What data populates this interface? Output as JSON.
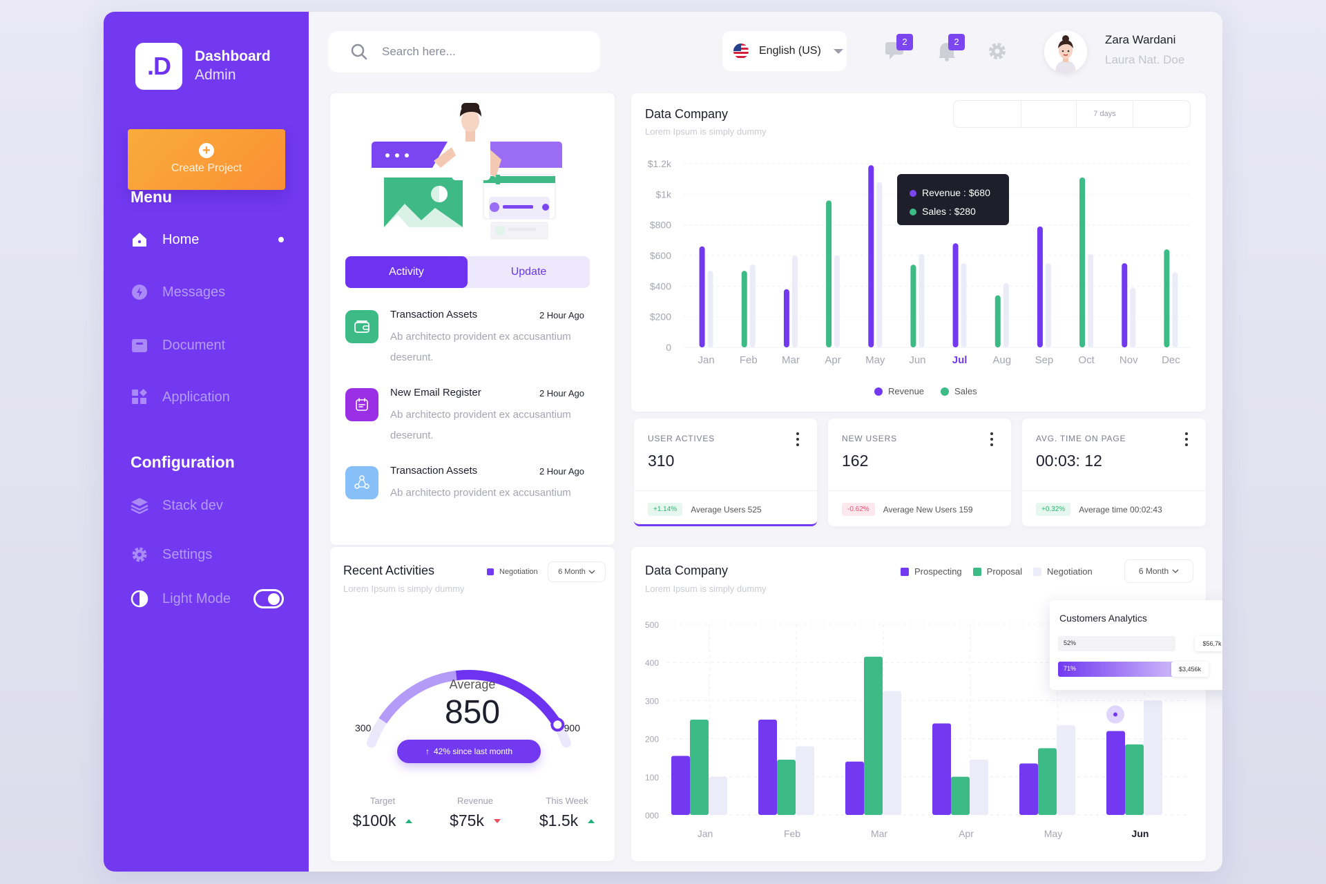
{
  "brand": {
    "logo": ".D",
    "title": "Dashboard",
    "subtitle": "Admin"
  },
  "create_label": "Create Project",
  "menu_title": "Menu",
  "menu": [
    {
      "label": "Home",
      "icon": "home-icon"
    },
    {
      "label": "Messages",
      "icon": "lightning-icon"
    },
    {
      "label": "Document",
      "icon": "folder-icon"
    },
    {
      "label": "Application",
      "icon": "apps-icon"
    }
  ],
  "config_title": "Configuration",
  "config": [
    {
      "label": "Stack dev",
      "icon": "layers-icon"
    },
    {
      "label": "Settings",
      "icon": "gear-icon"
    },
    {
      "label": "Light Mode",
      "icon": "contrast-icon"
    }
  ],
  "search": {
    "placeholder": "Search here..."
  },
  "language": "English (US)",
  "messages_badge": "2",
  "notifications_badge": "2",
  "user": {
    "name": "Zara Wardani",
    "role": "Laura Nat. Doe"
  },
  "activity_tabs": [
    "Activity",
    "Update"
  ],
  "activities": [
    {
      "title": "Transaction Assets",
      "time": "2 Hour Ago",
      "desc": "Ab architecto provident ex accusantium deserunt."
    },
    {
      "title": "New Email Register",
      "time": "2 Hour Ago",
      "desc": "Ab architecto provident ex accusantium deserunt."
    },
    {
      "title": "Transaction Assets",
      "time": "2 Hour Ago",
      "desc": "Ab architecto provident ex accusantium"
    }
  ],
  "recent": {
    "title": "Recent Activities",
    "subtitle": "Lorem Ipsum is simply dummy",
    "legend": "Negotiation",
    "period": "6 Month",
    "gauge_label": "Average",
    "gauge_value": "850",
    "gauge_min": "300",
    "gauge_max": "900",
    "gauge_fraction": 0.92,
    "since": "42% since last month",
    "kpis": [
      {
        "label": "Target",
        "value": "$100k",
        "trend": "up"
      },
      {
        "label": "Revenue",
        "value": "$75k",
        "trend": "down"
      },
      {
        "label": "This Week",
        "value": "$1.5k",
        "trend": "up"
      }
    ]
  },
  "company": {
    "title": "Data Company",
    "subtitle": "Lorem Ipsum is simply dummy",
    "range_label": "7 days",
    "tooltip_revenue": "Revenue : $680",
    "tooltip_sales": "Sales : $280",
    "legend_revenue": "Revenue",
    "legend_sales": "Sales"
  },
  "stats": [
    {
      "title": "USER ACTIVES",
      "value": "310",
      "change": "+1.14%",
      "dir": "up",
      "note": "Average Users 525"
    },
    {
      "title": "NEW USERS",
      "value": "162",
      "change": "-0.62%",
      "dir": "down",
      "note": "Average New Users 159"
    },
    {
      "title": "AVG. TIME ON PAGE",
      "value": "00:03: 12",
      "change": "+0.32%",
      "dir": "up",
      "note": "Average time 00:02:43"
    }
  ],
  "company2": {
    "title": "Data Company",
    "subtitle": "Lorem Ipsum is simply dummy",
    "legend": [
      "Prospecting",
      "Proposal",
      "Negotiation"
    ],
    "period": "6 Month",
    "popup_title": "Customers Analytics",
    "popup_rows": [
      {
        "pct": "52%",
        "value": "$56,7k"
      },
      {
        "pct": "71%",
        "value": "$3,456k"
      }
    ]
  },
  "colors": {
    "purple": "#7239f0",
    "green": "#3cbb86",
    "light": "#ecebf8",
    "orange": "#fb9a36"
  },
  "chart_data": [
    {
      "type": "bar",
      "title": "Data Company",
      "categories": [
        "Jan",
        "Feb",
        "Mar",
        "Apr",
        "May",
        "Jun",
        "Jul",
        "Aug",
        "Sep",
        "Oct",
        "Nov",
        "Dec"
      ],
      "yticks": [
        "0",
        "$200",
        "$400",
        "$600",
        "$800",
        "$1k",
        "$1.2k"
      ],
      "ylim": [
        0,
        1200
      ],
      "series": [
        {
          "name": "Revenue",
          "values": [
            660,
            0,
            380,
            0,
            1190,
            0,
            680,
            0,
            790,
            0,
            550,
            0
          ]
        },
        {
          "name": "Sales",
          "values": [
            0,
            500,
            0,
            960,
            0,
            540,
            0,
            340,
            0,
            1110,
            0,
            640
          ]
        },
        {
          "values": [
            500,
            540,
            600,
            600,
            1080,
            610,
            550,
            420,
            550,
            610,
            390,
            490
          ]
        }
      ],
      "highlight": "Jul",
      "legend_position": "bottom"
    },
    {
      "type": "bar",
      "title": "Data Company",
      "categories": [
        "Jan",
        "Feb",
        "Mar",
        "Apr",
        "May",
        "Jun"
      ],
      "yticks": [
        "000",
        "100",
        "200",
        "300",
        "400",
        "500"
      ],
      "ylim": [
        0,
        500
      ],
      "series": [
        {
          "name": "Prospecting",
          "values": [
            155,
            250,
            140,
            240,
            135,
            220
          ]
        },
        {
          "name": "Proposal",
          "values": [
            250,
            145,
            415,
            100,
            175,
            185
          ]
        },
        {
          "name": "Negotiation",
          "values": [
            100,
            180,
            325,
            145,
            235,
            300
          ]
        }
      ],
      "highlight": "Jun",
      "legend_position": "top-right"
    }
  ]
}
